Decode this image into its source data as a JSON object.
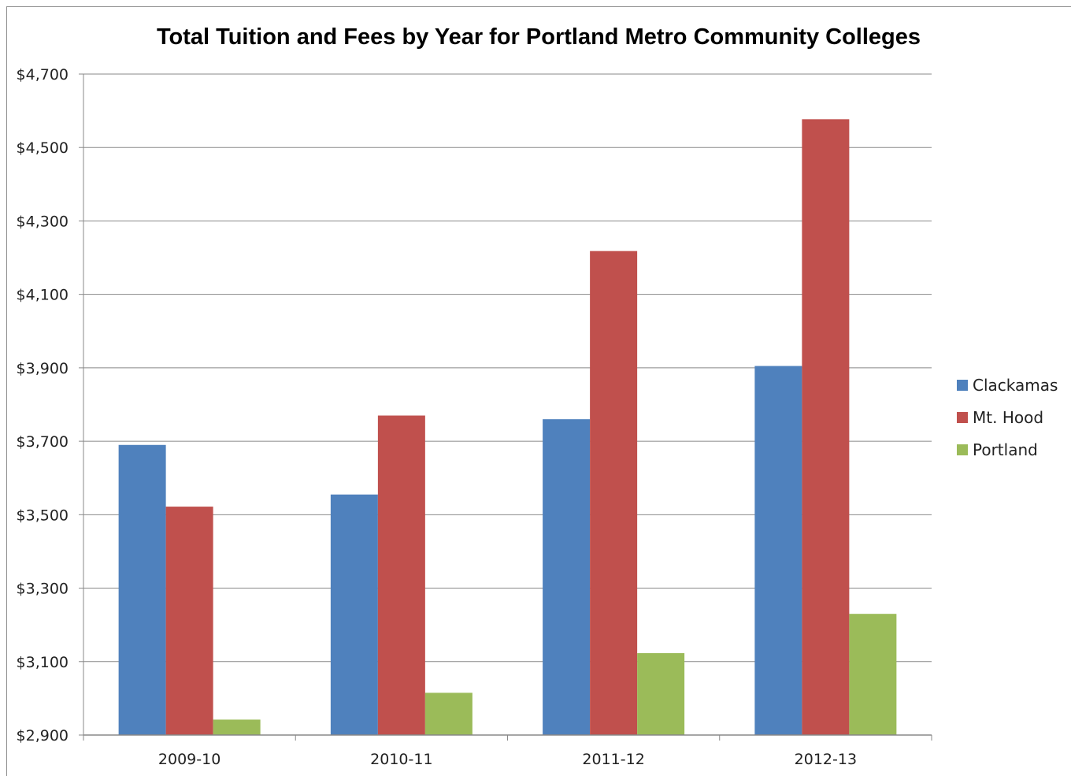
{
  "chart_data": {
    "type": "bar",
    "title": "Total Tuition and Fees by Year for Portland Metro Community Colleges",
    "xlabel": "",
    "ylabel": "",
    "categories": [
      "2009-10",
      "2010-11",
      "2011-12",
      "2012-13"
    ],
    "series": [
      {
        "name": "Clackamas",
        "color": "#4f81bd",
        "values": [
          3690,
          3555,
          3760,
          3905
        ]
      },
      {
        "name": "Mt. Hood",
        "color": "#c0504d",
        "values": [
          3522,
          3770,
          4218,
          4577
        ]
      },
      {
        "name": "Portland",
        "color": "#9bbb59",
        "values": [
          2942,
          3015,
          3123,
          3230
        ]
      }
    ],
    "ylim": [
      2900,
      4700
    ],
    "yticks": [
      2900,
      3100,
      3300,
      3500,
      3700,
      3900,
      4100,
      4300,
      4500,
      4700
    ],
    "ytick_labels": [
      "$2,900",
      "$3,100",
      "$3,300",
      "$3,500",
      "$3,700",
      "$3,900",
      "$4,100",
      "$4,300",
      "$4,500",
      "$4,700"
    ],
    "grid": true,
    "legend_position": "right"
  }
}
